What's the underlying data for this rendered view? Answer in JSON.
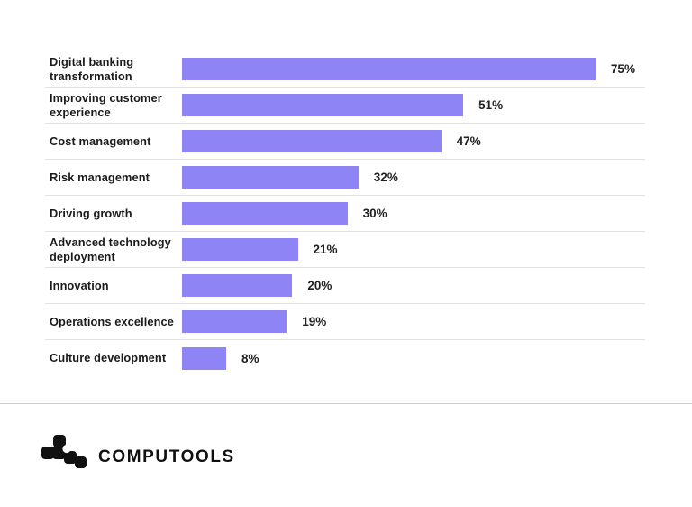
{
  "chart_data": {
    "type": "bar",
    "orientation": "horizontal",
    "title": "",
    "categories": [
      "Digital banking transformation",
      "Improving customer experience",
      "Cost management",
      "Risk management",
      "Driving growth",
      "Advanced technology deployment",
      "Innovation",
      "Operations excellence",
      "Culture development"
    ],
    "values": [
      75,
      51,
      47,
      32,
      30,
      21,
      20,
      19,
      8
    ],
    "value_labels": [
      "75%",
      "51%",
      "47%",
      "32%",
      "30%",
      "21%",
      "20%",
      "19%",
      "8%"
    ],
    "unit": "%",
    "axis_max": 84,
    "bar_color": "#8F84F5",
    "grid": "row-separators",
    "legend": "none"
  },
  "footer": {
    "brand": "COMPUTOOLS",
    "logo": "computools-logo-icon"
  },
  "colors": {
    "background": "#ffffff",
    "bar": "#8F84F5",
    "label_text": "#1b1b1b",
    "separator": "#e2e2e2",
    "footer_divider": "#cccccc",
    "logo": "#111111"
  }
}
